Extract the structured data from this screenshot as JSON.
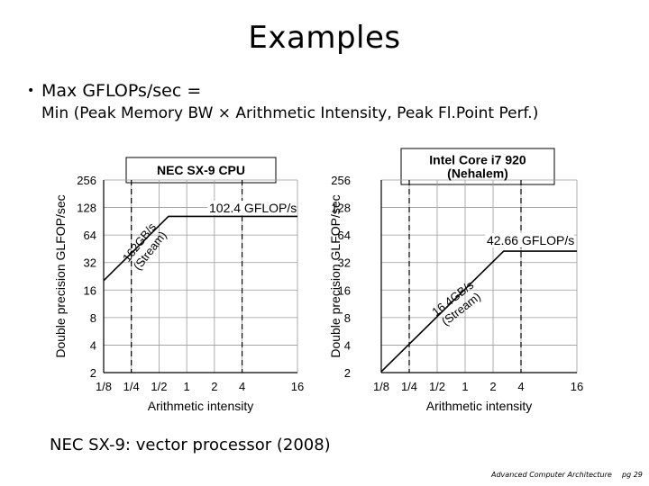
{
  "slide": {
    "title": "Examples",
    "bullet": "Max GFLOPs/sec =",
    "formula": "Min (Peak Memory BW × Arithmetic Intensity, Peak Fl.Point Perf.)",
    "caption": "NEC SX-9: vector processor (2008)",
    "footer_course": "Advanced Computer Architecture",
    "footer_page": "pg 29"
  },
  "chart_data": [
    {
      "type": "line",
      "title": "NEC SX-9 CPU",
      "xlabel": "Arithmetic intensity",
      "ylabel": "Double precision GLFOP/sec",
      "x_scale": "log2",
      "y_scale": "log2",
      "x_ticks": [
        "1/8",
        "1/4",
        "1/2",
        "1",
        "2",
        "4",
        "16"
      ],
      "x_tick_values": [
        0.125,
        0.25,
        0.5,
        1,
        2,
        4,
        16
      ],
      "x_range": [
        0.125,
        16
      ],
      "y_ticks": [
        "2",
        "4",
        "8",
        "16",
        "32",
        "64",
        "128",
        "256"
      ],
      "y_tick_values": [
        2,
        4,
        8,
        16,
        32,
        64,
        128,
        256
      ],
      "y_range": [
        2,
        256
      ],
      "grid": true,
      "roofline": {
        "x": [
          0.125,
          0.633,
          16
        ],
        "y": [
          20.3,
          102.4,
          102.4
        ]
      },
      "bandwidth_label": [
        "162GB/s",
        "(Stream)"
      ],
      "peak_label": "102.4 GFLOP/s",
      "dashed_x": [
        0.25,
        4
      ]
    },
    {
      "type": "line",
      "title": "Intel Core i7 920 (Nehalem)",
      "title_lines": [
        "Intel Core i7 920",
        "(Nehalem)"
      ],
      "xlabel": "Arithmetic intensity",
      "ylabel": "Double precision GLFOP/sec",
      "x_scale": "log2",
      "y_scale": "log2",
      "x_ticks": [
        "1/8",
        "1/4",
        "1/2",
        "1",
        "2",
        "4",
        "16"
      ],
      "x_tick_values": [
        0.125,
        0.25,
        0.5,
        1,
        2,
        4,
        16
      ],
      "x_range": [
        0.125,
        16
      ],
      "y_ticks": [
        "256",
        "128",
        "64",
        "32",
        "16",
        "8",
        "4",
        "2"
      ],
      "y_tick_values": [
        256,
        128,
        64,
        32,
        16,
        8,
        4,
        2
      ],
      "y_range": [
        2,
        256
      ],
      "grid": true,
      "roofline": {
        "x": [
          0.125,
          2.6,
          16
        ],
        "y": [
          2.05,
          42.66,
          42.66
        ]
      },
      "bandwidth_label": [
        "16.4GB/s",
        "(Stream)"
      ],
      "peak_label": "42.66 GFLOP/s",
      "dashed_x": [
        0.25,
        4
      ]
    }
  ]
}
